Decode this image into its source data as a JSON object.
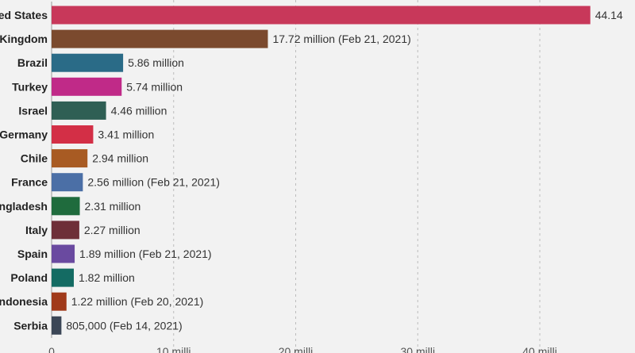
{
  "chart_data": {
    "type": "bar",
    "orientation": "horizontal",
    "categories": [
      "ed States",
      "Kingdom",
      "Brazil",
      "Turkey",
      "Israel",
      "Germany",
      "Chile",
      "France",
      "ngladesh",
      "Italy",
      "Spain",
      "Poland",
      "ndonesia",
      "Serbia"
    ],
    "values": [
      44.14,
      17.72,
      5.86,
      5.74,
      4.46,
      3.41,
      2.94,
      2.56,
      2.31,
      2.27,
      1.89,
      1.82,
      1.22,
      0.805
    ],
    "value_labels": [
      "44.14",
      "17.72 million (Feb 21, 2021)",
      "5.86 million",
      "5.74 million",
      "4.46 million",
      "3.41 million",
      "2.94 million",
      "2.56 million (Feb 21, 2021)",
      "2.31 million",
      "2.27 million",
      "1.89 million (Feb 21, 2021)",
      "1.82 million",
      "1.22 million (Feb 20, 2021)",
      "805,000 (Feb 14, 2021)"
    ],
    "colors": [
      "#c8385a",
      "#7b4a2e",
      "#2a6b87",
      "#c02a88",
      "#2f5f54",
      "#d32f46",
      "#a85b23",
      "#4b6fa6",
      "#1f6b3d",
      "#6e2f38",
      "#6a4aa0",
      "#146b63",
      "#a03a1b",
      "#3b4656"
    ],
    "x_ticks": [
      {
        "value": 0,
        "label": "0"
      },
      {
        "value": 10,
        "label": "10 milli"
      },
      {
        "value": 20,
        "label": "20 milli"
      },
      {
        "value": 30,
        "label": "30 milli"
      },
      {
        "value": 40,
        "label": "40 milli"
      }
    ],
    "xlim": [
      0,
      45.2
    ],
    "grid": true,
    "title": "",
    "xlabel": "",
    "ylabel": ""
  }
}
